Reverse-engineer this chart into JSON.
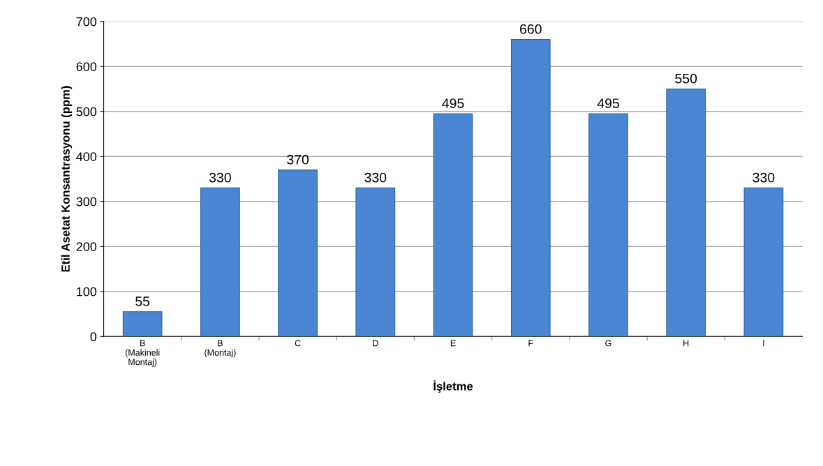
{
  "chart_data": {
    "type": "bar",
    "xlabel": "İşletme",
    "ylabel": "Etil Asetat Konsantrasyonu (ppm)",
    "categories": [
      "B\n(Makineli\nMontaj)",
      "B\n(Montaj)",
      "C",
      "D",
      "E",
      "F",
      "G",
      "H",
      "I"
    ],
    "values": [
      55,
      330,
      370,
      330,
      495,
      660,
      495,
      550,
      330
    ],
    "color": "#4a86d4",
    "ylim": [
      0,
      700
    ],
    "yticks": [
      0,
      100,
      200,
      300,
      400,
      500,
      600,
      700
    ],
    "grid": "y",
    "data_labels": true,
    "legend": false
  }
}
